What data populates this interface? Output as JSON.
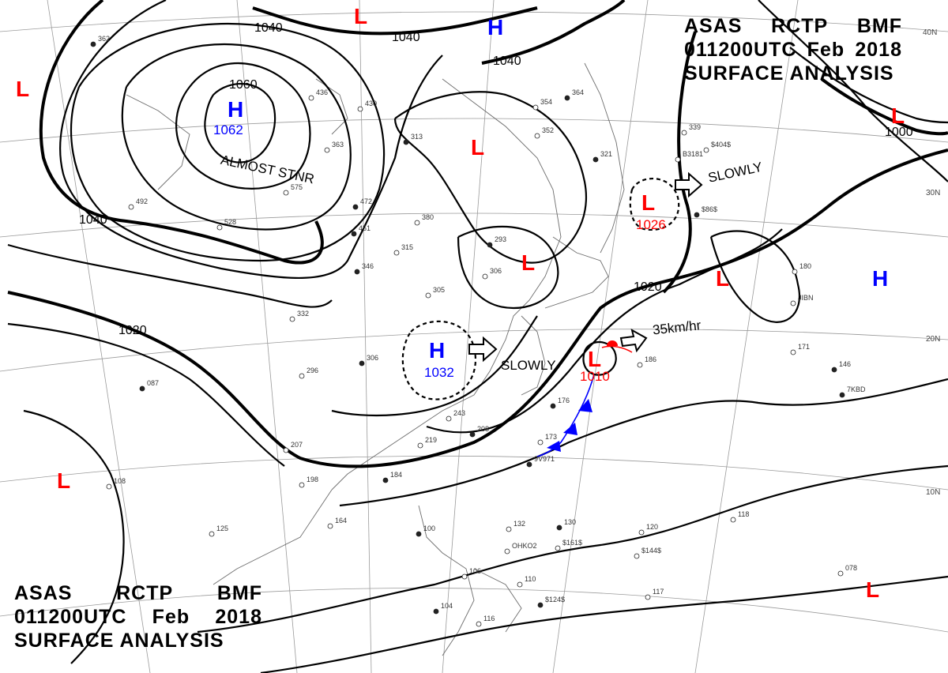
{
  "header": {
    "line1": [
      "ASAS",
      "RCTP",
      "BMF"
    ],
    "line2": [
      "011200UTC",
      "Feb",
      "2018"
    ],
    "line3": "SURFACE ANALYSIS"
  },
  "latitude_labels": [
    "40N",
    "30N",
    "20N",
    "10N"
  ],
  "isobar_labels": [
    "1040",
    "1040",
    "1040",
    "1040",
    "1060",
    "1020",
    "1020",
    "1000"
  ],
  "pressure_systems": [
    {
      "type": "H",
      "color": "#0000ff"
    },
    {
      "type": "H",
      "color": "#0000ff",
      "value": "1062",
      "note": "ALMOST STNR"
    },
    {
      "type": "H",
      "color": "#0000ff"
    },
    {
      "type": "H",
      "color": "#0000ff",
      "value": "1032",
      "note": "SLOWLY"
    },
    {
      "type": "L",
      "color": "#ff0000"
    },
    {
      "type": "L",
      "color": "#ff0000"
    },
    {
      "type": "L",
      "color": "#ff0000"
    },
    {
      "type": "L",
      "color": "#ff0000",
      "value": "1026",
      "note": "SLOWLY"
    },
    {
      "type": "L",
      "color": "#ff0000"
    },
    {
      "type": "L",
      "color": "#ff0000",
      "value": "1010",
      "note": "35km/hr"
    },
    {
      "type": "L",
      "color": "#ff0000"
    },
    {
      "type": "L",
      "color": "#ff0000"
    },
    {
      "type": "L",
      "color": "#ff0000"
    },
    {
      "type": "L",
      "color": "#ff0000"
    }
  ],
  "station_labels": [
    "362",
    "436",
    "430",
    "313",
    "363",
    "575",
    "472",
    "492",
    "528",
    "451",
    "380",
    "315",
    "346",
    "332",
    "296",
    "306",
    "305",
    "306",
    "293",
    "243",
    "219",
    "208",
    "207",
    "198",
    "184",
    "164",
    "125",
    "087",
    "108",
    "173",
    "176",
    "186",
    "171",
    "146",
    "180",
    "339",
    "321",
    "352",
    "354",
    "364",
    "118",
    "120",
    "130",
    "132",
    "116",
    "100",
    "110",
    "106",
    "104",
    "117",
    "078",
    "9V971",
    "OHKO2",
    "JIBN",
    "7KBD",
    "$161$",
    "$144$",
    "$124$",
    "B3181",
    "$404$",
    "$86$"
  ],
  "colors": {
    "high": "#0000ff",
    "low": "#ff0000",
    "isobar": "#000000",
    "grid": "#9a9a9a"
  }
}
